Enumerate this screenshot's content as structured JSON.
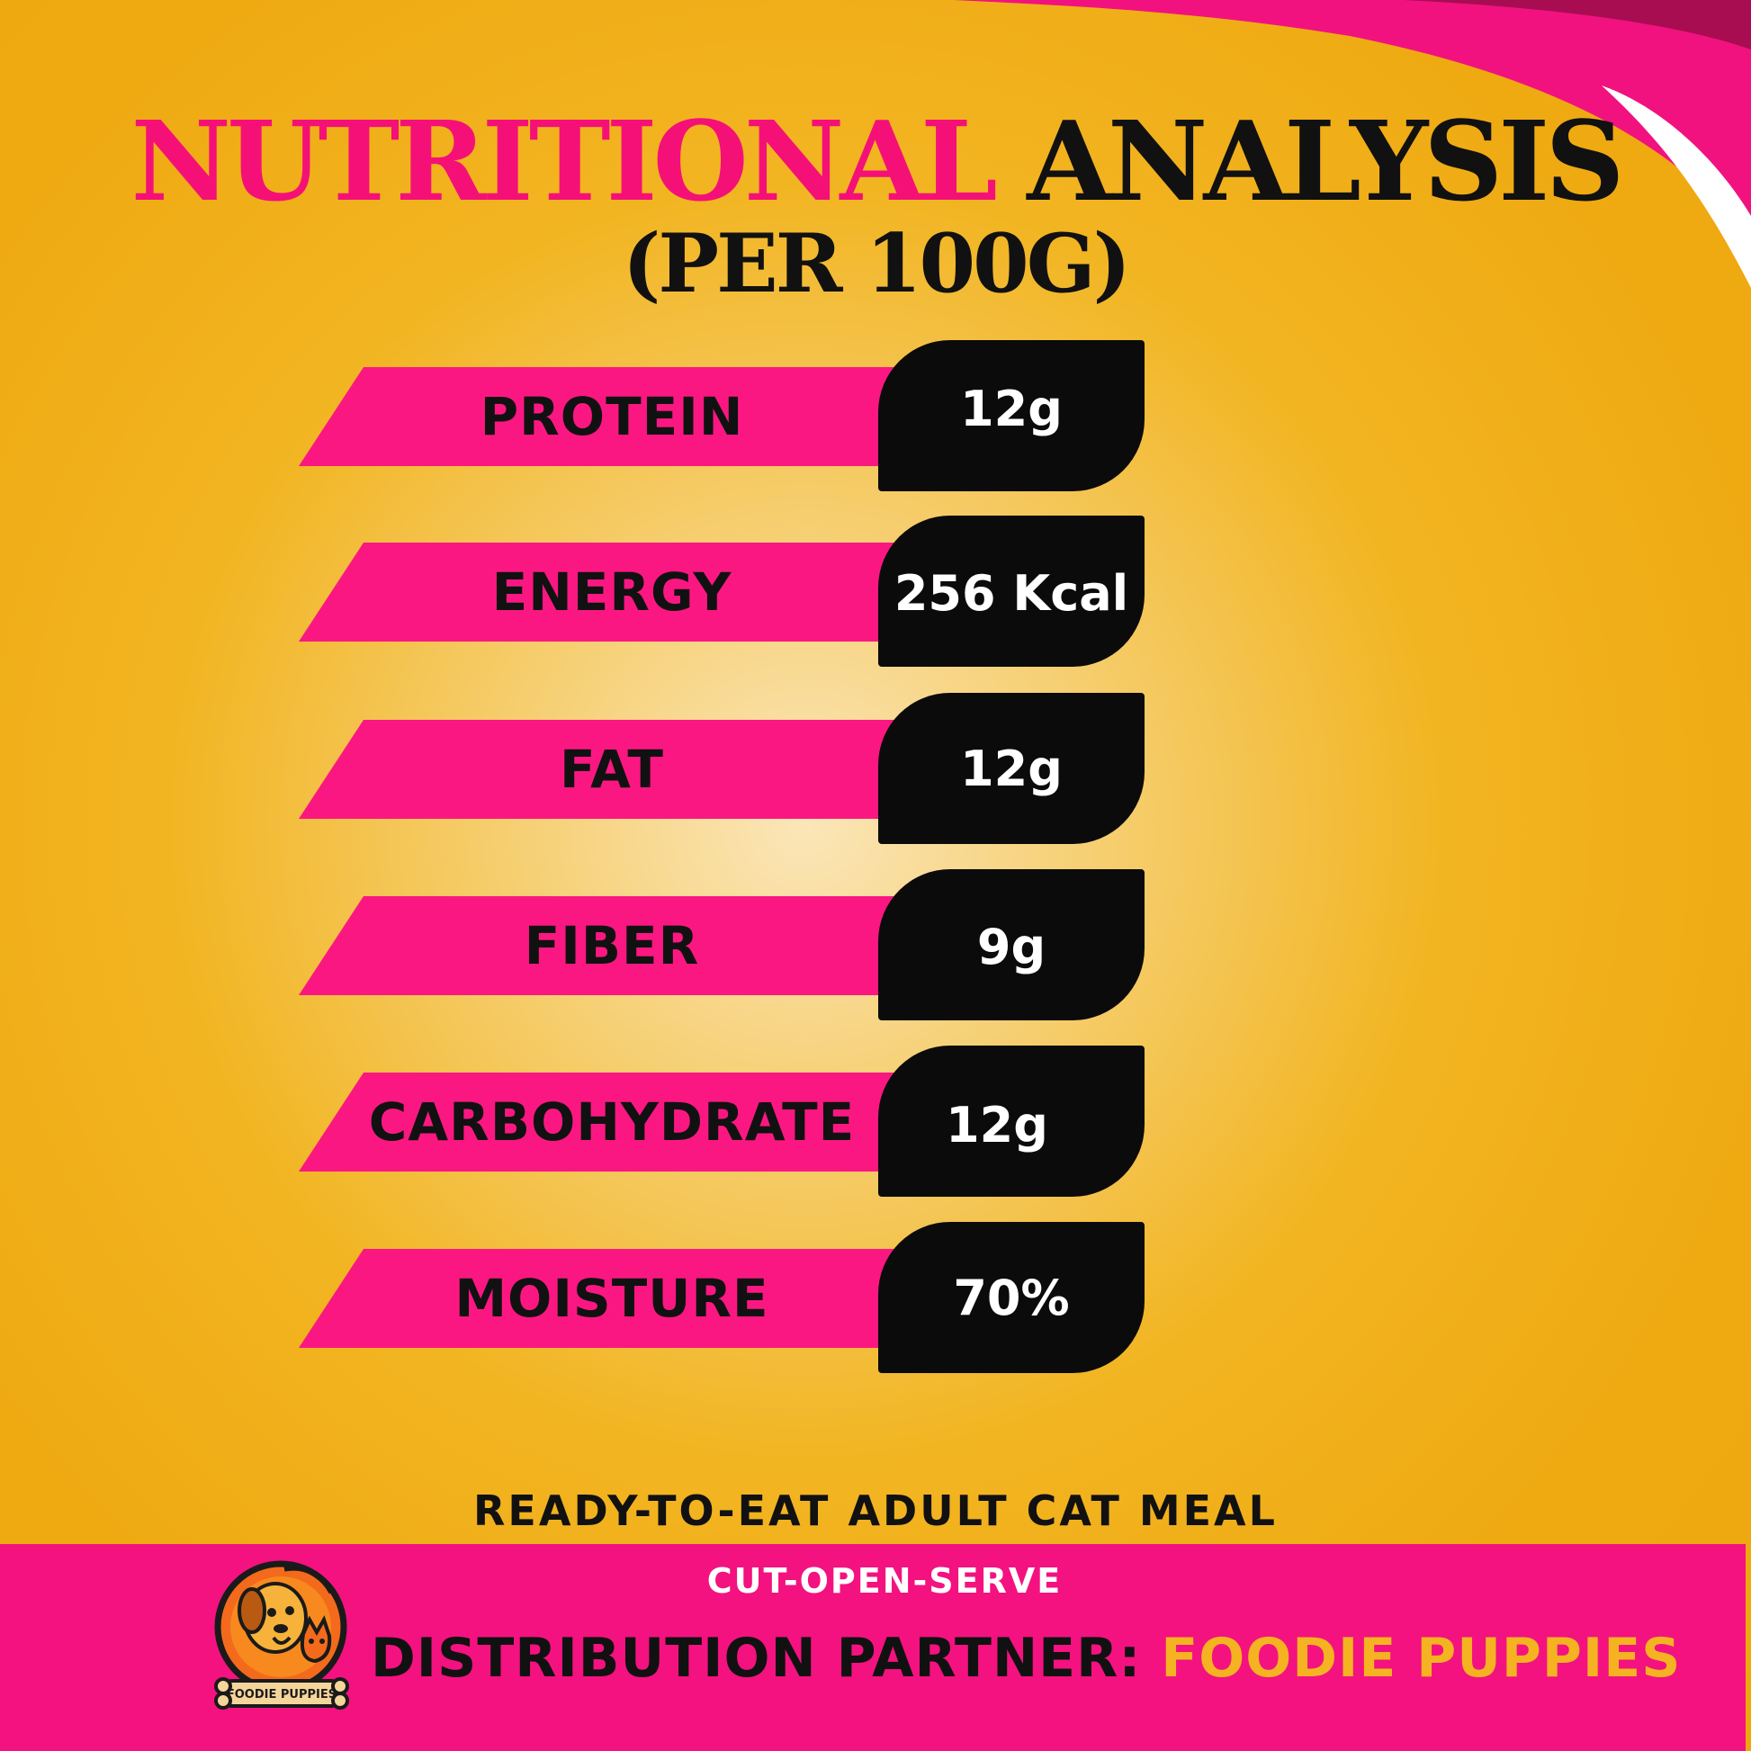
{
  "title": {
    "highlight": "NUTRITIONAL",
    "rest": "ANALYSIS",
    "subtitle": "(PER 100G)"
  },
  "nutrients": [
    {
      "label": "PROTEIN",
      "value": "12g"
    },
    {
      "label": "ENERGY",
      "value": "256 Kcal"
    },
    {
      "label": "FAT",
      "value": "12g"
    },
    {
      "label": "FIBER",
      "value": "9g"
    },
    {
      "label": "CARBOHYDRATE",
      "value": "12g"
    },
    {
      "label": "MOISTURE",
      "value": "70%"
    }
  ],
  "tagline": "READY-TO-EAT ADULT CAT MEAL",
  "footer": {
    "subline": "CUT-OPEN-SERVE",
    "partner_label": "DISTRIBUTION PARTNER:",
    "partner_name": "FOODIE PUPPIES",
    "logo_text": "FOODIE PUPPIES"
  },
  "colors": {
    "accent_pink": "#f51078",
    "background": "#f0ad14",
    "value_bg": "#0b0b0b",
    "brand_yellow": "#f5b321"
  }
}
